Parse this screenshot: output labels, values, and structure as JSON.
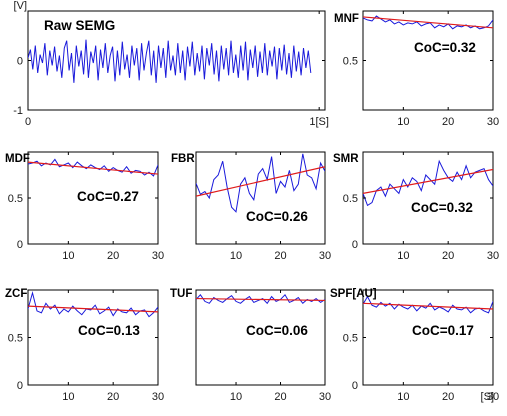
{
  "figure": {
    "colors": {
      "signal": "#1a1adb",
      "trend": "#e01b1b",
      "axis": "#000000"
    }
  },
  "chart_data": [
    {
      "id": "raw",
      "type": "line",
      "title": "Raw SEMG",
      "ylabel": "[V]",
      "xlabel": "1[S]",
      "xlim": [
        0,
        1.02
      ],
      "ylim": [
        -1,
        1
      ],
      "xticks": [
        0,
        1
      ],
      "xtick_labels": [
        "0",
        "1[S]"
      ],
      "yticks": [
        -1,
        0
      ],
      "ytick_labels": [
        "-1",
        "0"
      ],
      "y_top_label": "[V]",
      "series": [
        {
          "x_start": 0.0,
          "x_step": 0.0083,
          "y": [
            0.05,
            0.22,
            -0.18,
            0.3,
            -0.25,
            0.12,
            -0.05,
            0.35,
            -0.3,
            0.2,
            -0.1,
            0.28,
            -0.22,
            0.1,
            -0.35,
            0.25,
            0.4,
            -0.2,
            0.15,
            -0.45,
            0.3,
            -0.12,
            0.2,
            -0.28,
            0.42,
            -0.35,
            0.18,
            -0.05,
            0.3,
            -0.4,
            0.22,
            -0.15,
            0.35,
            -0.25,
            0.1,
            0.28,
            -0.42,
            0.2,
            -0.3,
            0.38,
            -0.18,
            0.12,
            -0.35,
            0.3,
            -0.1,
            0.25,
            -0.4,
            0.35,
            -0.2,
            0.15,
            0.4,
            -0.3,
            0.2,
            -0.45,
            0.3,
            -0.15,
            0.25,
            -0.35,
            0.4,
            -0.2,
            0.1,
            -0.3,
            0.35,
            -0.25,
            0.2,
            -0.4,
            0.28,
            -0.12,
            0.38,
            -0.3,
            0.15,
            -0.22,
            0.3,
            -0.38,
            0.25,
            -0.1,
            0.35,
            -0.28,
            0.2,
            -0.42,
            0.3,
            -0.18,
            0.25,
            -0.3,
            0.4,
            -0.25,
            0.12,
            -0.35,
            0.3,
            -0.2,
            0.38,
            -0.4,
            0.22,
            -0.15,
            0.3,
            -0.33,
            0.18,
            -0.25,
            0.35,
            -0.3,
            0.2,
            -0.12,
            0.28,
            -0.38,
            0.25,
            -0.2,
            0.32,
            -0.28,
            0.15,
            -0.35,
            0.3,
            -0.22,
            0.18,
            -0.3,
            0.25,
            -0.15,
            0.2,
            -0.25
          ]
        }
      ]
    },
    {
      "id": "mnf",
      "type": "line",
      "title": "MNF",
      "annotation": "CoC=0.32",
      "xlim": [
        1,
        30
      ],
      "ylim": [
        0,
        1
      ],
      "xticks": [
        10,
        20,
        30
      ],
      "xtick_labels": [
        "10",
        "20",
        "30"
      ],
      "yticks": [
        0.5
      ],
      "ytick_labels": [
        "0.5"
      ],
      "ytick_labels_hidden_edge": [
        "0",
        "1"
      ],
      "x": [
        1,
        2,
        3,
        4,
        5,
        6,
        7,
        8,
        9,
        10,
        11,
        12,
        13,
        14,
        15,
        16,
        17,
        18,
        19,
        20,
        21,
        22,
        23,
        24,
        25,
        26,
        27,
        28,
        29,
        30
      ],
      "values": [
        0.93,
        0.91,
        0.9,
        0.95,
        0.92,
        0.89,
        0.91,
        0.87,
        0.89,
        0.86,
        0.88,
        0.87,
        0.89,
        0.85,
        0.87,
        0.88,
        0.83,
        0.86,
        0.84,
        0.87,
        0.82,
        0.85,
        0.84,
        0.86,
        0.83,
        0.85,
        0.82,
        0.83,
        0.85,
        0.91
      ],
      "trend": [
        0.94,
        0.83
      ]
    },
    {
      "id": "mdf",
      "type": "line",
      "title": "MDF",
      "annotation": "CoC=0.27",
      "xlim": [
        1,
        30
      ],
      "ylim": [
        0,
        1
      ],
      "xticks": [
        10,
        20,
        30
      ],
      "xtick_labels": [
        "10",
        "20",
        "30"
      ],
      "yticks": [
        0,
        0.5
      ],
      "ytick_labels": [
        "0",
        "0.5"
      ],
      "x": [
        1,
        2,
        3,
        4,
        5,
        6,
        7,
        8,
        9,
        10,
        11,
        12,
        13,
        14,
        15,
        16,
        17,
        18,
        19,
        20,
        21,
        22,
        23,
        24,
        25,
        26,
        27,
        28,
        29,
        30
      ],
      "values": [
        0.87,
        0.88,
        0.9,
        0.85,
        0.88,
        0.86,
        0.92,
        0.84,
        0.86,
        0.88,
        0.83,
        0.89,
        0.85,
        0.82,
        0.86,
        0.83,
        0.81,
        0.85,
        0.79,
        0.83,
        0.8,
        0.78,
        0.84,
        0.77,
        0.8,
        0.79,
        0.75,
        0.78,
        0.74,
        0.86
      ],
      "trend": [
        0.89,
        0.76
      ]
    },
    {
      "id": "fbr",
      "type": "line",
      "title": "FBR",
      "annotation": "CoC=0.26",
      "xlim": [
        1,
        30
      ],
      "ylim": [
        0,
        1
      ],
      "xticks": [
        10,
        20,
        30
      ],
      "xtick_labels": [
        "10",
        "20",
        "30"
      ],
      "yticks": [],
      "ytick_labels": [],
      "x": [
        1,
        2,
        3,
        4,
        5,
        6,
        7,
        8,
        9,
        10,
        11,
        12,
        13,
        14,
        15,
        16,
        17,
        18,
        19,
        20,
        21,
        22,
        23,
        24,
        25,
        26,
        27,
        28,
        29,
        30
      ],
      "values": [
        0.66,
        0.54,
        0.57,
        0.5,
        0.7,
        0.75,
        0.9,
        0.62,
        0.4,
        0.35,
        0.65,
        0.72,
        0.55,
        0.48,
        0.76,
        0.82,
        0.7,
        0.95,
        0.55,
        0.68,
        0.62,
        0.8,
        0.58,
        0.65,
        0.98,
        0.75,
        0.72,
        0.6,
        0.88,
        0.79
      ],
      "trend": [
        0.52,
        0.84
      ]
    },
    {
      "id": "smr",
      "type": "line",
      "title": "SMR",
      "annotation": "CoC=0.32",
      "xlim": [
        1,
        30
      ],
      "ylim": [
        0,
        1
      ],
      "xticks": [
        10,
        20,
        30
      ],
      "xtick_labels": [
        "10",
        "20",
        "30"
      ],
      "yticks": [
        0,
        0.5
      ],
      "ytick_labels": [
        "0",
        "0.5"
      ],
      "x": [
        1,
        2,
        3,
        4,
        5,
        6,
        7,
        8,
        9,
        10,
        11,
        12,
        13,
        14,
        15,
        16,
        17,
        18,
        19,
        20,
        21,
        22,
        23,
        24,
        25,
        26,
        27,
        28,
        29,
        30
      ],
      "values": [
        0.55,
        0.42,
        0.45,
        0.58,
        0.62,
        0.52,
        0.65,
        0.6,
        0.55,
        0.7,
        0.62,
        0.72,
        0.68,
        0.58,
        0.75,
        0.7,
        0.65,
        0.9,
        0.8,
        0.72,
        0.68,
        0.78,
        0.7,
        0.85,
        0.72,
        0.78,
        0.8,
        0.82,
        0.7,
        0.63
      ],
      "trend": [
        0.55,
        0.81
      ]
    },
    {
      "id": "zcf",
      "type": "line",
      "title": "ZCF",
      "annotation": "CoC=0.13",
      "xlim": [
        1,
        30
      ],
      "ylim": [
        0,
        1
      ],
      "xticks": [
        10,
        20,
        30
      ],
      "xtick_labels": [
        "10",
        "20",
        "30"
      ],
      "yticks": [
        0,
        0.5
      ],
      "ytick_labels": [
        "0",
        "0.5"
      ],
      "x": [
        1,
        2,
        3,
        4,
        5,
        6,
        7,
        8,
        9,
        10,
        11,
        12,
        13,
        14,
        15,
        16,
        17,
        18,
        19,
        20,
        21,
        22,
        23,
        24,
        25,
        26,
        27,
        28,
        29,
        30
      ],
      "values": [
        0.8,
        0.97,
        0.78,
        0.76,
        0.86,
        0.8,
        0.84,
        0.75,
        0.8,
        0.77,
        0.83,
        0.78,
        0.74,
        0.8,
        0.79,
        0.84,
        0.75,
        0.78,
        0.82,
        0.73,
        0.8,
        0.77,
        0.76,
        0.81,
        0.74,
        0.78,
        0.79,
        0.72,
        0.76,
        0.82
      ],
      "trend": [
        0.83,
        0.77
      ]
    },
    {
      "id": "tuf",
      "type": "line",
      "title": "TUF",
      "annotation": "CoC=0.06",
      "xlim": [
        1,
        30
      ],
      "ylim": [
        0,
        1
      ],
      "xticks": [
        10,
        20,
        30
      ],
      "xtick_labels": [
        "10",
        "20",
        "30"
      ],
      "yticks": [],
      "ytick_labels": [],
      "x": [
        1,
        2,
        3,
        4,
        5,
        6,
        7,
        8,
        9,
        10,
        11,
        12,
        13,
        14,
        15,
        16,
        17,
        18,
        19,
        20,
        21,
        22,
        23,
        24,
        25,
        26,
        27,
        28,
        29,
        30
      ],
      "values": [
        0.9,
        0.95,
        0.88,
        0.86,
        0.92,
        0.89,
        0.87,
        0.91,
        0.94,
        0.88,
        0.86,
        0.9,
        0.93,
        0.87,
        0.89,
        0.91,
        0.86,
        0.93,
        0.88,
        0.9,
        0.95,
        0.87,
        0.89,
        0.92,
        0.86,
        0.9,
        0.88,
        0.91,
        0.87,
        0.9
      ],
      "trend": [
        0.91,
        0.89
      ]
    },
    {
      "id": "spf",
      "type": "line",
      "title": "SPF[AU]",
      "annotation": "CoC=0.17",
      "xlim": [
        1,
        30
      ],
      "ylim": [
        0,
        1
      ],
      "xticks": [
        10,
        20,
        30
      ],
      "xtick_labels": [
        "10",
        "20",
        "30"
      ],
      "xlabel": "[S]",
      "yticks": [
        0,
        0.5
      ],
      "ytick_labels": [
        "0",
        "0.5"
      ],
      "x": [
        1,
        2,
        3,
        4,
        5,
        6,
        7,
        8,
        9,
        10,
        11,
        12,
        13,
        14,
        15,
        16,
        17,
        18,
        19,
        20,
        21,
        22,
        23,
        24,
        25,
        26,
        27,
        28,
        29,
        30
      ],
      "values": [
        0.85,
        0.93,
        0.84,
        0.82,
        0.87,
        0.83,
        0.86,
        0.8,
        0.85,
        0.82,
        0.8,
        0.84,
        0.78,
        0.83,
        0.81,
        0.86,
        0.79,
        0.82,
        0.8,
        0.77,
        0.84,
        0.8,
        0.79,
        0.82,
        0.76,
        0.8,
        0.81,
        0.78,
        0.76,
        0.88
      ],
      "trend": [
        0.86,
        0.8
      ]
    }
  ]
}
